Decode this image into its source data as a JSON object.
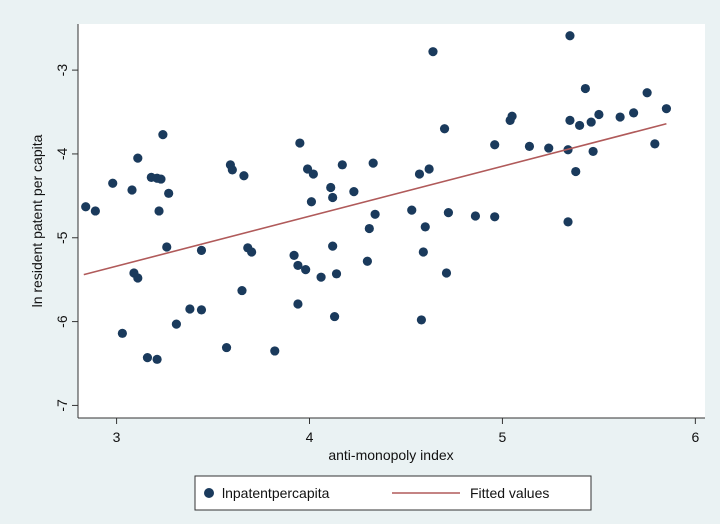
{
  "chart_data": {
    "type": "scatter",
    "xlabel": "anti-monopoly index",
    "ylabel": "ln resident patent per capita",
    "xlim": [
      2.8,
      6.05
    ],
    "ylim": [
      -7.15,
      -2.45
    ],
    "xticks": [
      3,
      4,
      5,
      6
    ],
    "yticks": [
      -3,
      -4,
      -5,
      -6,
      -7
    ],
    "xtick_labels": [
      "3",
      "4",
      "5",
      "6"
    ],
    "ytick_labels": [
      "-3",
      "-4",
      "-5",
      "-6",
      "-7"
    ],
    "grid": false,
    "legend_position": "bottom",
    "colors": {
      "points": "#1a3a5c",
      "fit": "#b05a5a",
      "background": "#eaf2f3",
      "plot": "#ffffff"
    },
    "series": [
      {
        "name": "lnpatentpercapita",
        "type": "scatter",
        "points": [
          [
            2.84,
            -4.63
          ],
          [
            2.89,
            -4.68
          ],
          [
            2.98,
            -4.35
          ],
          [
            3.03,
            -6.14
          ],
          [
            3.08,
            -4.43
          ],
          [
            3.09,
            -5.42
          ],
          [
            3.11,
            -5.48
          ],
          [
            3.11,
            -4.05
          ],
          [
            3.16,
            -6.43
          ],
          [
            3.18,
            -4.28
          ],
          [
            3.21,
            -6.45
          ],
          [
            3.21,
            -4.29
          ],
          [
            3.22,
            -4.68
          ],
          [
            3.23,
            -4.3
          ],
          [
            3.24,
            -3.77
          ],
          [
            3.26,
            -5.11
          ],
          [
            3.27,
            -4.47
          ],
          [
            3.31,
            -6.03
          ],
          [
            3.38,
            -5.85
          ],
          [
            3.44,
            -5.86
          ],
          [
            3.44,
            -5.15
          ],
          [
            3.57,
            -6.31
          ],
          [
            3.59,
            -4.13
          ],
          [
            3.6,
            -4.19
          ],
          [
            3.65,
            -5.63
          ],
          [
            3.66,
            -4.26
          ],
          [
            3.68,
            -5.12
          ],
          [
            3.7,
            -5.17
          ],
          [
            3.82,
            -6.35
          ],
          [
            3.92,
            -5.21
          ],
          [
            3.94,
            -5.79
          ],
          [
            3.94,
            -5.33
          ],
          [
            3.95,
            -3.87
          ],
          [
            3.98,
            -5.38
          ],
          [
            3.99,
            -4.18
          ],
          [
            4.01,
            -4.57
          ],
          [
            4.02,
            -4.24
          ],
          [
            4.06,
            -5.47
          ],
          [
            4.11,
            -4.4
          ],
          [
            4.12,
            -5.1
          ],
          [
            4.12,
            -4.52
          ],
          [
            4.13,
            -5.94
          ],
          [
            4.14,
            -5.43
          ],
          [
            4.17,
            -4.13
          ],
          [
            4.23,
            -4.45
          ],
          [
            4.3,
            -5.28
          ],
          [
            4.31,
            -4.89
          ],
          [
            4.33,
            -4.11
          ],
          [
            4.34,
            -4.72
          ],
          [
            4.53,
            -4.67
          ],
          [
            4.57,
            -4.24
          ],
          [
            4.58,
            -5.98
          ],
          [
            4.59,
            -5.17
          ],
          [
            4.6,
            -4.87
          ],
          [
            4.62,
            -4.18
          ],
          [
            4.64,
            -2.78
          ],
          [
            4.7,
            -3.7
          ],
          [
            4.71,
            -5.42
          ],
          [
            4.72,
            -4.7
          ],
          [
            4.86,
            -4.74
          ],
          [
            4.96,
            -3.89
          ],
          [
            4.96,
            -4.75
          ],
          [
            5.04,
            -3.6
          ],
          [
            5.05,
            -3.55
          ],
          [
            5.14,
            -3.91
          ],
          [
            5.24,
            -3.93
          ],
          [
            5.34,
            -3.95
          ],
          [
            5.34,
            -4.81
          ],
          [
            5.35,
            -3.6
          ],
          [
            5.35,
            -2.59
          ],
          [
            5.38,
            -4.21
          ],
          [
            5.4,
            -3.66
          ],
          [
            5.43,
            -3.22
          ],
          [
            5.46,
            -3.62
          ],
          [
            5.47,
            -3.97
          ],
          [
            5.5,
            -3.53
          ],
          [
            5.61,
            -3.56
          ],
          [
            5.68,
            -3.51
          ],
          [
            5.75,
            -3.27
          ],
          [
            5.79,
            -3.88
          ],
          [
            5.85,
            -3.46
          ]
        ]
      },
      {
        "name": "Fitted values",
        "type": "line",
        "points": [
          [
            2.83,
            -5.44
          ],
          [
            5.85,
            -3.64
          ]
        ]
      }
    ]
  }
}
